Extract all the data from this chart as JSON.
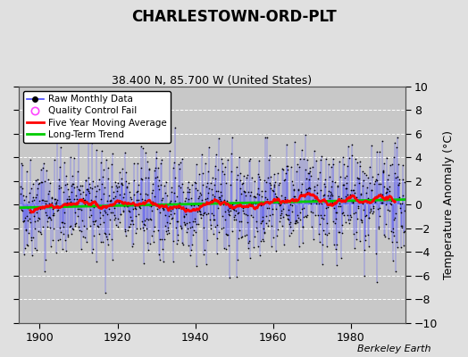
{
  "title": "CHARLESTOWN-ORD-PLT",
  "subtitle": "38.400 N, 85.700 W (United States)",
  "ylabel": "Temperature Anomaly (°C)",
  "watermark": "Berkeley Earth",
  "year_start": 1895,
  "year_end": 1993,
  "ylim": [
    -10,
    10
  ],
  "yticks": [
    -10,
    -8,
    -6,
    -4,
    -2,
    0,
    2,
    4,
    6,
    8,
    10
  ],
  "xticks": [
    1900,
    1920,
    1940,
    1960,
    1980
  ],
  "bg_color": "#e0e0e0",
  "plot_bg_color": "#c8c8c8",
  "raw_line_color": "#4444ff",
  "raw_marker_color": "#000000",
  "qc_fail_color": "#ff44ff",
  "moving_avg_color": "#ff0000",
  "trend_color": "#00cc00",
  "grid_color": "#aaaaaa",
  "random_seed": 42,
  "noise_amplitude": 2.2,
  "seasonal_amplitude": 0.3,
  "trend_slope": 0.003
}
